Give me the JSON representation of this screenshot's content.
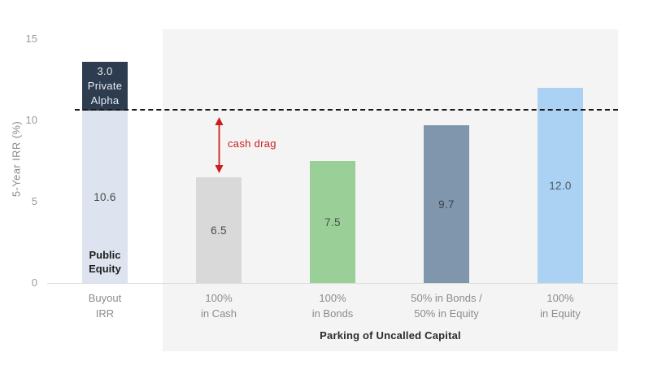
{
  "chart_data": {
    "type": "bar",
    "title": "",
    "ylabel": "5-Year IRR (%)",
    "xlabel": "Parking of Uncalled Capital",
    "ylim": [
      0,
      15
    ],
    "yticks": [
      0,
      5,
      10,
      15
    ],
    "grid": false,
    "legend_position": "none",
    "categories": [
      "Buyout IRR",
      "100% in Cash",
      "100% in Bonds",
      "50% in Bonds / 50% in Equity",
      "100% in Equity"
    ],
    "bars": [
      {
        "name": "buyout-irr",
        "category_lines": [
          "Buyout",
          "IRR"
        ],
        "total": 13.6,
        "segments": [
          {
            "label": "Public Equity",
            "value": 10.6,
            "value_text": "10.6",
            "color": "#dde4f0",
            "text_color": "#4a4a4a",
            "footer_lines": [
              "Public",
              "Equity"
            ],
            "footer_color": "#1f1f1f"
          },
          {
            "label": "Private Alpha",
            "value": 3.0,
            "color": "#2d3c4f",
            "text_color": "#e8edf3",
            "center_lines": [
              "3.0",
              "Private",
              "Alpha"
            ]
          }
        ]
      },
      {
        "name": "cash-100",
        "category_lines": [
          "100%",
          "in Cash"
        ],
        "total": 6.5,
        "segments": [
          {
            "label": "100% in Cash",
            "value": 6.5,
            "value_text": "6.5",
            "color": "#d9d9d9",
            "text_color": "#4a4a4a"
          }
        ]
      },
      {
        "name": "bonds-100",
        "category_lines": [
          "100%",
          "in Bonds"
        ],
        "total": 7.5,
        "segments": [
          {
            "label": "100% in Bonds",
            "value": 7.5,
            "value_text": "7.5",
            "color": "#9bcf98",
            "text_color": "#44524a"
          }
        ]
      },
      {
        "name": "bonds-50-equity-50",
        "category_lines": [
          "50% in Bonds /",
          "50% in Equity"
        ],
        "total": 9.7,
        "segments": [
          {
            "label": "50% in Bonds / 50% in Equity",
            "value": 9.7,
            "value_text": "9.7",
            "color": "#8096ac",
            "text_color": "#3b434d"
          }
        ]
      },
      {
        "name": "equity-100",
        "category_lines": [
          "100%",
          "in Equity"
        ],
        "total": 12.0,
        "segments": [
          {
            "label": "100% in Equity",
            "value": 12.0,
            "value_text": "12.0",
            "color": "#abd2f2",
            "text_color": "#4a5864"
          }
        ]
      }
    ],
    "reference_line": {
      "value": 10.6,
      "style": "dashed",
      "color": "#1a1a1a"
    },
    "annotation": {
      "text": "cash drag",
      "color": "#cc1e1e",
      "bar_index": 1,
      "from_value": 10.6,
      "to_value": 6.5,
      "arrow": "double-headed-vertical"
    }
  }
}
